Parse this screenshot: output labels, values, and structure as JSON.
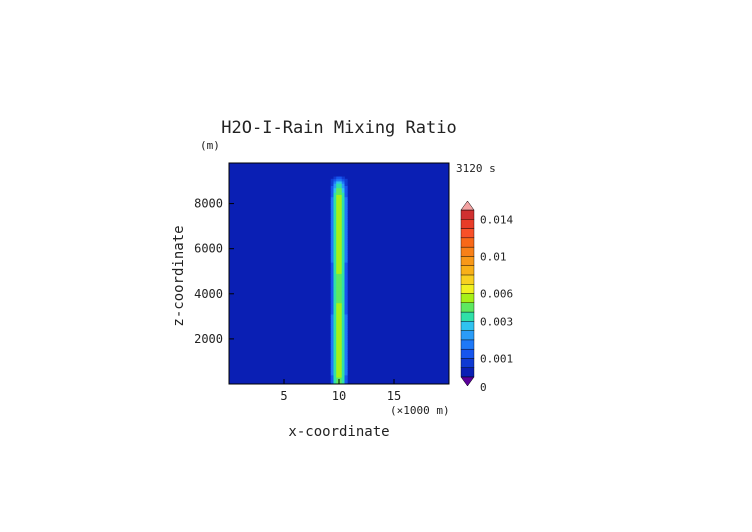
{
  "chart_data": {
    "type": "heatmap",
    "title": "H2O-I-Rain Mixing Ratio",
    "ylabel_unit": "(m)",
    "time_label": "3120 s",
    "xlabel": "x-coordinate",
    "ylabel": "z-coordinate",
    "x_unit": "(×1000 m)",
    "xlim": [
      0,
      20
    ],
    "ylim": [
      0,
      9800
    ],
    "x_ticks": [
      5,
      10,
      15
    ],
    "y_ticks": [
      2000,
      4000,
      6000,
      8000
    ],
    "x_tick_labels": [
      "5",
      "10",
      "15"
    ],
    "y_tick_labels": [
      "2000",
      "4000",
      "6000",
      "8000"
    ],
    "field": {
      "description": "vertical plume of rain mixing ratio centered at x=10",
      "center_x": 10,
      "half_width_x": 1.0,
      "z_bottom": 0,
      "z_top": 9300,
      "peak_value": 0.006,
      "background_value": 0.0
    },
    "colorbar": {
      "levels": [
        0,
        0.0005,
        0.001,
        0.0015,
        0.002,
        0.0025,
        0.003,
        0.004,
        0.005,
        0.006,
        0.007,
        0.008,
        0.009,
        0.01,
        0.011,
        0.012,
        0.013,
        0.014,
        0.015
      ],
      "tick_values": [
        0,
        0.001,
        0.003,
        0.006,
        0.01,
        0.014
      ],
      "tick_labels": [
        "0",
        "0.001",
        "0.003",
        "0.006",
        "0.01",
        "0.014"
      ],
      "under_color": "#5a009a",
      "over_color": "#f4a3a3"
    },
    "colors": {
      "background_field": "#0a1fb4",
      "axis": "#000000"
    }
  }
}
